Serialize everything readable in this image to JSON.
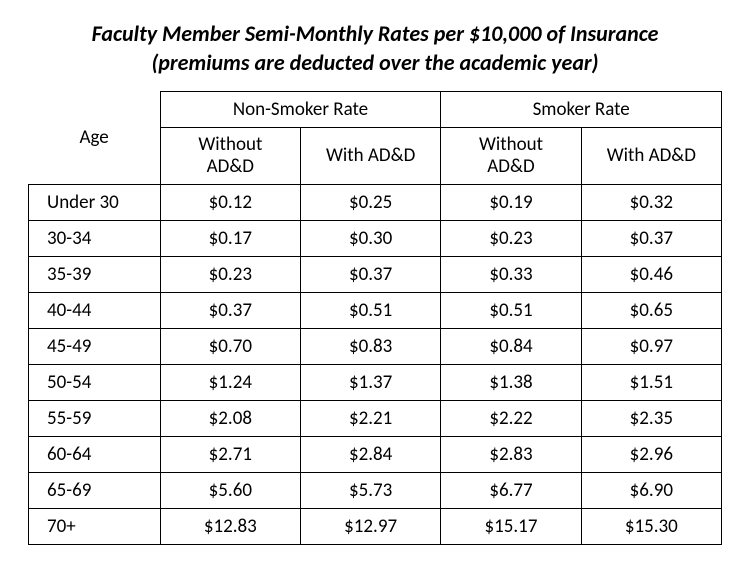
{
  "title_line1": "Faculty Member Semi-Monthly Rates per $10,000 of Insurance",
  "title_line2": "(premiums are deducted over the academic year)",
  "columns": {
    "age_label": "Age",
    "group_nonsmoker": "Non-Smoker Rate",
    "group_smoker": "Smoker Rate",
    "without_add": "Without\nAD&D",
    "with_add": "With AD&D"
  },
  "rows": [
    {
      "age": "Under 30",
      "ns_wo": "$0.12",
      "ns_w": "$0.25",
      "s_wo": "$0.19",
      "s_w": "$0.32"
    },
    {
      "age": "30-34",
      "ns_wo": "$0.17",
      "ns_w": "$0.30",
      "s_wo": "$0.23",
      "s_w": "$0.37"
    },
    {
      "age": "35-39",
      "ns_wo": "$0.23",
      "ns_w": "$0.37",
      "s_wo": "$0.33",
      "s_w": "$0.46"
    },
    {
      "age": "40-44",
      "ns_wo": "$0.37",
      "ns_w": "$0.51",
      "s_wo": "$0.51",
      "s_w": "$0.65"
    },
    {
      "age": "45-49",
      "ns_wo": "$0.70",
      "ns_w": "$0.83",
      "s_wo": "$0.84",
      "s_w": "$0.97"
    },
    {
      "age": "50-54",
      "ns_wo": "$1.24",
      "ns_w": "$1.37",
      "s_wo": "$1.38",
      "s_w": "$1.51"
    },
    {
      "age": "55-59",
      "ns_wo": "$2.08",
      "ns_w": "$2.21",
      "s_wo": "$2.22",
      "s_w": "$2.35"
    },
    {
      "age": "60-64",
      "ns_wo": "$2.71",
      "ns_w": "$2.84",
      "s_wo": "$2.83",
      "s_w": "$2.96"
    },
    {
      "age": "65-69",
      "ns_wo": "$5.60",
      "ns_w": "$5.73",
      "s_wo": "$6.77",
      "s_w": "$6.90"
    },
    {
      "age": "70+",
      "ns_wo": "$12.83",
      "ns_w": "$12.97",
      "s_wo": "$15.17",
      "s_w": "$15.30"
    }
  ],
  "style": {
    "font_family": "Calibri",
    "title_fontsize_pt": 16,
    "title_weight": "bold",
    "title_style": "italic",
    "cell_fontsize_pt": 14,
    "border_color": "#000000",
    "background_color": "#ffffff",
    "text_color": "#000000",
    "col_widths_pct": [
      19,
      20.25,
      20.25,
      20.25,
      20.25
    ]
  }
}
